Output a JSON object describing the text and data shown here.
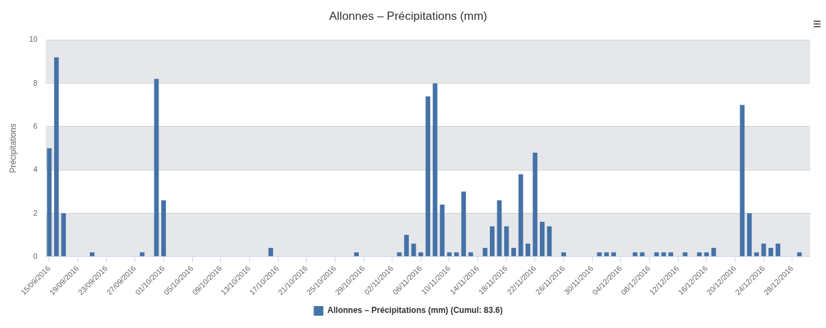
{
  "chart_data": {
    "type": "bar",
    "title": "Allonnes – Précipitations (mm)",
    "ylabel": "Précipitations",
    "categories": [
      "15/09/2016",
      null,
      null,
      null,
      "19/09/2016",
      null,
      null,
      null,
      "23/09/2016",
      null,
      null,
      null,
      "27/09/2016",
      null,
      null,
      null,
      "01/10/2016",
      null,
      null,
      null,
      "05/10/2016",
      null,
      null,
      null,
      "09/10/2016",
      null,
      null,
      null,
      "13/10/2016",
      null,
      null,
      null,
      "17/10/2016",
      null,
      null,
      null,
      "21/10/2016",
      null,
      null,
      null,
      "25/10/2016",
      null,
      null,
      null,
      "29/10/2016",
      null,
      null,
      null,
      "02/11/2016",
      null,
      null,
      null,
      "06/11/2016",
      null,
      null,
      null,
      "10/11/2016",
      null,
      null,
      null,
      "14/11/2016",
      null,
      null,
      null,
      "18/11/2016",
      null,
      null,
      null,
      "22/11/2016",
      null,
      null,
      null,
      "26/11/2016",
      null,
      null,
      null,
      "30/11/2016",
      null,
      null,
      null,
      "04/12/2016",
      null,
      null,
      null,
      "08/12/2016",
      null,
      null,
      null,
      "12/12/2016",
      null,
      null,
      null,
      "16/12/2016",
      null,
      null,
      null,
      "20/12/2016",
      null,
      null,
      null,
      "24/12/2016",
      null,
      null,
      null,
      "28/12/2016",
      null,
      null
    ],
    "series": [
      {
        "name": "Allonnes – Précipitations (mm) (Cumul: 83.6)",
        "color": "#4572a7",
        "values": [
          5,
          9.2,
          2,
          0,
          0,
          0,
          0.2,
          0,
          0,
          0,
          0,
          0,
          0,
          0.2,
          0,
          8.2,
          2.6,
          0,
          0,
          0,
          0,
          0,
          0,
          0,
          0,
          0,
          0,
          0,
          0,
          0,
          0,
          0.4,
          0,
          0,
          0,
          0,
          0,
          0,
          0,
          0,
          0,
          0,
          0,
          0.2,
          0,
          0,
          0,
          0,
          0,
          0.2,
          1,
          0.6,
          0.2,
          7.4,
          8,
          2.4,
          0.2,
          0.2,
          3,
          0.2,
          0,
          0.4,
          1.4,
          2.6,
          1.4,
          0.4,
          3.8,
          0.6,
          4.8,
          1.6,
          1.4,
          0,
          0.2,
          0,
          0,
          0,
          0,
          0.2,
          0.2,
          0.2,
          0,
          0,
          0.2,
          0.2,
          0,
          0.2,
          0.2,
          0.2,
          0,
          0.2,
          0,
          0.2,
          0.2,
          0.4,
          0,
          0,
          0,
          7,
          2,
          0.2,
          0.6,
          0.4,
          0.6,
          0,
          0,
          0.2,
          0
        ]
      }
    ],
    "ylim": [
      0,
      10
    ],
    "yticks": [
      0,
      2,
      4,
      6,
      8,
      10
    ],
    "grid": "y",
    "legend": "bottom"
  }
}
